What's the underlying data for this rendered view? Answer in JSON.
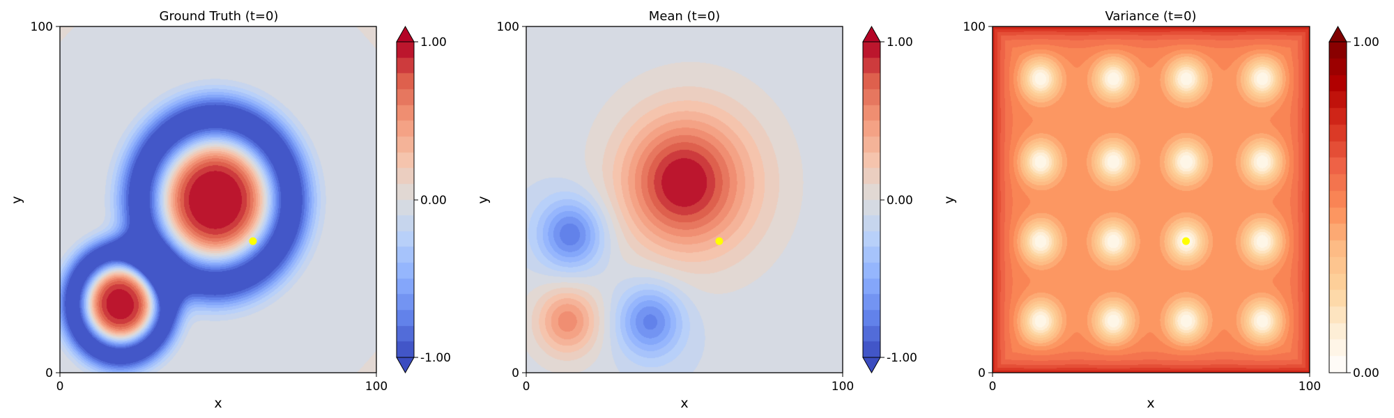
{
  "chart_data": [
    {
      "type": "heatmap",
      "title": "Ground Truth (t=0)",
      "xlabel": "x",
      "ylabel": "y",
      "xlim": [
        0,
        100
      ],
      "ylim": [
        0,
        100
      ],
      "x_ticks": [
        "0",
        "100"
      ],
      "y_ticks": [
        "0",
        "100"
      ],
      "colormap": "coolwarm",
      "colorbar": {
        "range": [
          -1.0,
          1.0
        ],
        "ticks": [
          "1.00",
          "0.00",
          "-1.00"
        ],
        "extend": "both"
      },
      "features": [
        {
          "shape": "ring",
          "center": [
            49,
            50
          ],
          "core_value": 1.0,
          "ring_value": -1.0
        },
        {
          "shape": "ring",
          "center": [
            19,
            20
          ],
          "core_value": 0.95,
          "ring_value": -1.0
        }
      ],
      "background_value": 0.0,
      "marker": {
        "x": 61,
        "y": 38,
        "color": "#ffff00"
      }
    },
    {
      "type": "heatmap",
      "title": "Mean (t=0)",
      "xlabel": "x",
      "ylabel": "y",
      "xlim": [
        0,
        100
      ],
      "ylim": [
        0,
        100
      ],
      "x_ticks": [
        "0",
        "100"
      ],
      "y_ticks": [
        "0",
        "100"
      ],
      "colormap": "coolwarm",
      "colorbar": {
        "range": [
          -1.0,
          1.0
        ],
        "ticks": [
          "1.00",
          "0.00",
          "-1.00"
        ],
        "extend": "both"
      },
      "features": [
        {
          "shape": "peak",
          "center": [
            48,
            55
          ],
          "value": 0.65
        },
        {
          "shape": "peak",
          "center": [
            13,
            15
          ],
          "value": 0.55
        },
        {
          "shape": "trough",
          "center": [
            14,
            40
          ],
          "value": -0.7
        },
        {
          "shape": "trough",
          "center": [
            39,
            15
          ],
          "value": -0.65
        }
      ],
      "background_value": -0.08,
      "marker": {
        "x": 61,
        "y": 38,
        "color": "#ffff00"
      }
    },
    {
      "type": "heatmap",
      "title": "Variance (t=0)",
      "xlabel": "x",
      "ylabel": "y",
      "xlim": [
        0,
        100
      ],
      "ylim": [
        0,
        100
      ],
      "x_ticks": [
        "0",
        "100"
      ],
      "y_ticks": [
        "0",
        "100"
      ],
      "colormap": "OrRd",
      "colorbar": {
        "range": [
          0.0,
          1.0
        ],
        "ticks": [
          "1.00",
          "0.00"
        ],
        "extend": "max"
      },
      "sample_grid": {
        "x": [
          15,
          38,
          61,
          85
        ],
        "y": [
          15,
          38,
          61,
          85
        ],
        "value_at_samples": 0.05
      },
      "background_value": 0.5,
      "edge_value": 0.8,
      "marker": {
        "x": 61,
        "y": 38,
        "color": "#ffff00"
      }
    }
  ]
}
